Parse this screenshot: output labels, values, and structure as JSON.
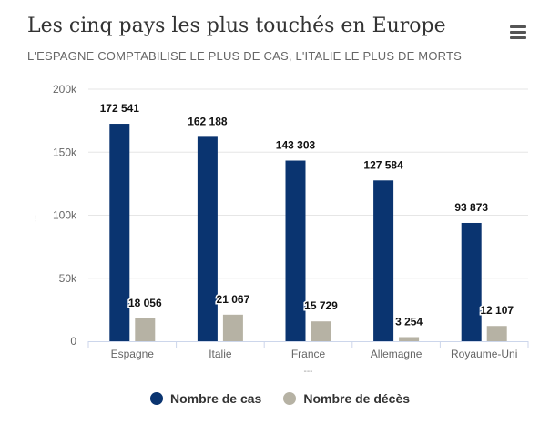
{
  "header": {
    "title": "Les cinq pays les plus touchés en Europe",
    "subtitle": "L'ESPAGNE COMPTABILISE LE PLUS DE CAS, L'ITALIE LE PLUS DE MORTS",
    "menu_icon": "hamburger-menu-icon"
  },
  "colors": {
    "series_cases": "#0a3470",
    "series_deaths": "#b6b2a4",
    "grid": "#e6e6e6"
  },
  "chart_data": {
    "type": "bar",
    "title": "Les cinq pays les plus touchés en Europe",
    "subtitle": "L'ESPAGNE COMPTABILISE LE PLUS DE CAS, L'ITALIE LE PLUS DE MORTS",
    "categories": [
      "Espagne",
      "Italie",
      "France",
      "Allemagne",
      "Royaume-Uni"
    ],
    "series": [
      {
        "name": "Nombre de cas",
        "values": [
          172541,
          162188,
          143303,
          127584,
          93873
        ],
        "labels": [
          "172 541",
          "162 188",
          "143 303",
          "127 584",
          "93 873"
        ]
      },
      {
        "name": "Nombre de décès",
        "values": [
          18056,
          21067,
          15729,
          3254,
          12107
        ],
        "labels": [
          "18 056",
          "21 067",
          "15 729",
          "3 254",
          "12 107"
        ]
      }
    ],
    "yticks": [
      "0",
      "50k",
      "100k",
      "150k",
      "200k"
    ],
    "ylim": [
      0,
      200000
    ],
    "ylabel": "",
    "ylabel_mark": "...",
    "xlabel": "",
    "xlabel_mark": "---",
    "grid": true,
    "legend": "bottom-center"
  }
}
